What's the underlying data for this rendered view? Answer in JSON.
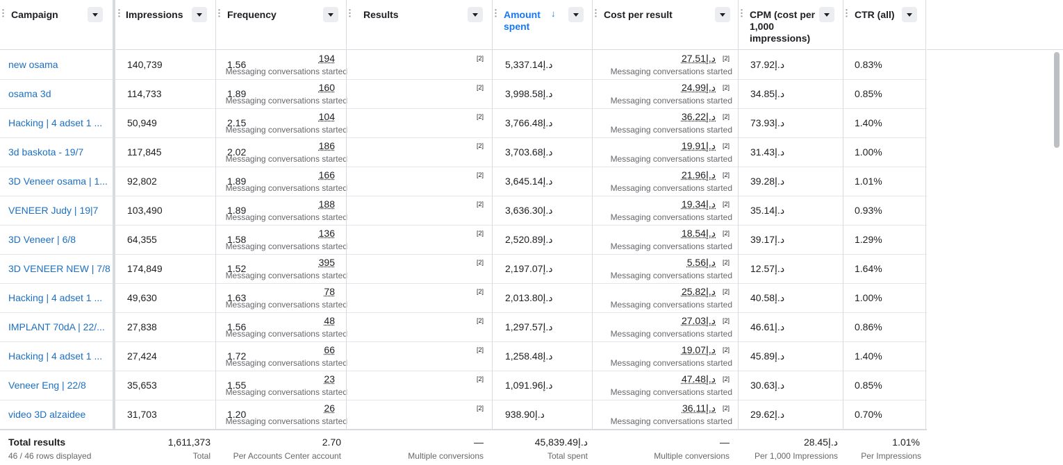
{
  "columns": [
    {
      "key": "campaign",
      "label": "Campaign"
    },
    {
      "key": "impressions",
      "label": "Impressions"
    },
    {
      "key": "frequency",
      "label": "Frequency"
    },
    {
      "key": "results",
      "label": "Results"
    },
    {
      "key": "amount_spent",
      "label": "Amount spent",
      "sorted": "desc"
    },
    {
      "key": "cost_per_result",
      "label": "Cost per result"
    },
    {
      "key": "cpm",
      "label": "CPM (cost per 1,000 impressions)"
    },
    {
      "key": "ctr",
      "label": "CTR (all)"
    }
  ],
  "result_type": "Messaging conversations started",
  "badge": "[2]",
  "rows": [
    {
      "campaign": "new osama",
      "impressions": "140,739",
      "frequency": "1.56",
      "results": "194",
      "amount_spent": "5,337.14د.إ",
      "cost_per_result": "27.51د.إ",
      "cpm": "37.92د.إ",
      "ctr": "0.83%"
    },
    {
      "campaign": "osama 3d",
      "impressions": "114,733",
      "frequency": "1.89",
      "results": "160",
      "amount_spent": "3,998.58د.إ",
      "cost_per_result": "24.99د.إ",
      "cpm": "34.85د.إ",
      "ctr": "0.85%"
    },
    {
      "campaign": "Hacking | 4 adset 1 ...",
      "impressions": "50,949",
      "frequency": "2.15",
      "results": "104",
      "amount_spent": "3,766.48د.إ",
      "cost_per_result": "36.22د.إ",
      "cpm": "73.93د.إ",
      "ctr": "1.40%"
    },
    {
      "campaign": "3d baskota - 19/7",
      "impressions": "117,845",
      "frequency": "2.02",
      "results": "186",
      "amount_spent": "3,703.68د.إ",
      "cost_per_result": "19.91د.إ",
      "cpm": "31.43د.إ",
      "ctr": "1.00%"
    },
    {
      "campaign": "3D Veneer osama | 1...",
      "impressions": "92,802",
      "frequency": "1.89",
      "results": "166",
      "amount_spent": "3,645.14د.إ",
      "cost_per_result": "21.96د.إ",
      "cpm": "39.28د.إ",
      "ctr": "1.01%"
    },
    {
      "campaign": "VENEER Judy | 19|7",
      "impressions": "103,490",
      "frequency": "1.89",
      "results": "188",
      "amount_spent": "3,636.30د.إ",
      "cost_per_result": "19.34د.إ",
      "cpm": "35.14د.إ",
      "ctr": "0.93%"
    },
    {
      "campaign": "3D Veneer | 6/8",
      "impressions": "64,355",
      "frequency": "1.58",
      "results": "136",
      "amount_spent": "2,520.89د.إ",
      "cost_per_result": "18.54د.إ",
      "cpm": "39.17د.إ",
      "ctr": "1.29%"
    },
    {
      "campaign": "3D VENEER NEW | 7/8",
      "impressions": "174,849",
      "frequency": "1.52",
      "results": "395",
      "amount_spent": "2,197.07د.إ",
      "cost_per_result": "5.56د.إ",
      "cpm": "12.57د.إ",
      "ctr": "1.64%"
    },
    {
      "campaign": "Hacking | 4 adset 1 ...",
      "impressions": "49,630",
      "frequency": "1.63",
      "results": "78",
      "amount_spent": "2,013.80د.إ",
      "cost_per_result": "25.82د.إ",
      "cpm": "40.58د.إ",
      "ctr": "1.00%"
    },
    {
      "campaign": "IMPLANT 70dA | 22/...",
      "impressions": "27,838",
      "frequency": "1.56",
      "results": "48",
      "amount_spent": "1,297.57د.إ",
      "cost_per_result": "27.03د.إ",
      "cpm": "46.61د.إ",
      "ctr": "0.86%"
    },
    {
      "campaign": "Hacking | 4 adset 1 ...",
      "impressions": "27,424",
      "frequency": "1.72",
      "results": "66",
      "amount_spent": "1,258.48د.إ",
      "cost_per_result": "19.07د.إ",
      "cpm": "45.89د.إ",
      "ctr": "1.40%"
    },
    {
      "campaign": "Veneer Eng | 22/8",
      "impressions": "35,653",
      "frequency": "1.55",
      "results": "23",
      "amount_spent": "1,091.96د.إ",
      "cost_per_result": "47.48د.إ",
      "cpm": "30.63د.إ",
      "ctr": "0.85%"
    },
    {
      "campaign": "video 3D alzaidee",
      "impressions": "31,703",
      "frequency": "1.20",
      "results": "26",
      "amount_spent": "938.90د.إ",
      "cost_per_result": "36.11د.إ",
      "cpm": "29.62د.إ",
      "ctr": "0.70%"
    }
  ],
  "totals": {
    "label": "Total results",
    "rows_displayed": "46 / 46 rows displayed",
    "impressions": "1,611,373",
    "impressions_sub": "Total",
    "frequency": "2.70",
    "frequency_sub": "Per Accounts Center account",
    "results": "—",
    "results_sub": "Multiple conversions",
    "amount_spent": "45,839.49د.إ",
    "amount_spent_sub": "Total spent",
    "cost_per_result": "—",
    "cost_per_result_sub": "Multiple conversions",
    "cpm": "28.45د.إ",
    "cpm_sub": "Per 1,000 Impressions",
    "ctr": "1.01%",
    "ctr_sub": "Per Impressions"
  }
}
